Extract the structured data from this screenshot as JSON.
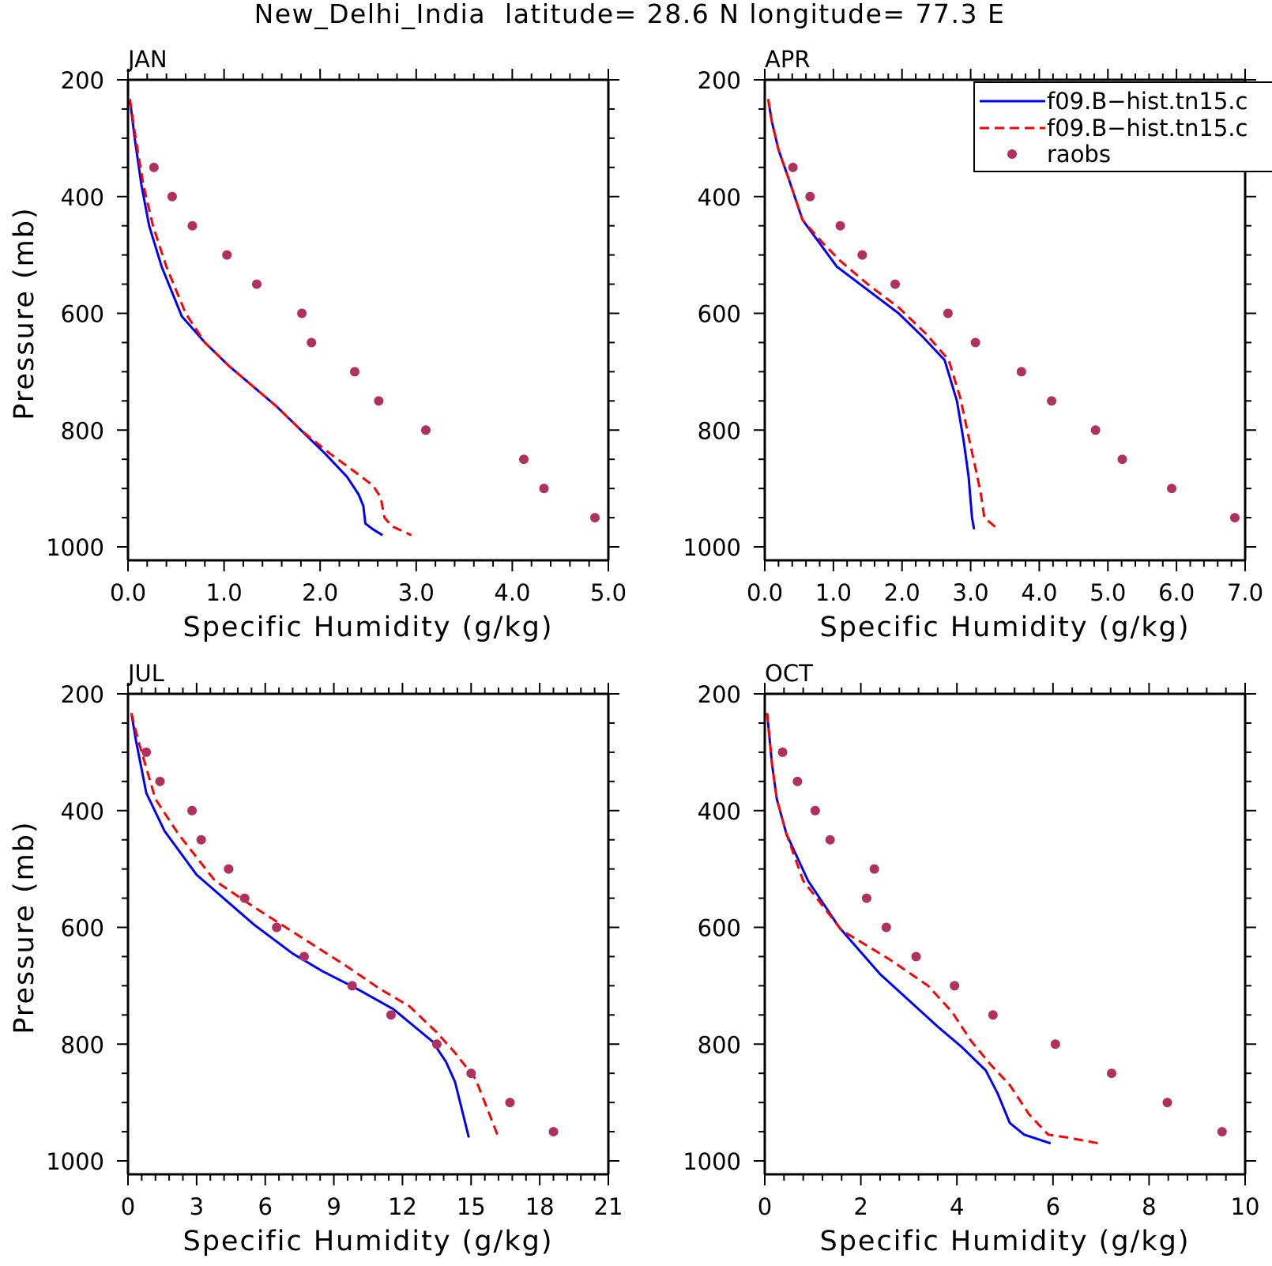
{
  "figure": {
    "title": "New_Delhi_India  latitude= 28.6 N longitude= 77.3 E"
  },
  "legend": {
    "placement": "top-right",
    "entries": [
      {
        "label": "f09.B−hist.tn15.c",
        "style": "solid",
        "color": "#0000ff"
      },
      {
        "label": "f09.B−hist.tn15.c",
        "style": "dashed",
        "color": "#ff0000"
      },
      {
        "label": "raobs",
        "style": "marker",
        "color": "#b03060"
      }
    ]
  },
  "colors": {
    "model_solid": "#0000ff",
    "model_dashed": "#ff0000",
    "raobs": "#b03060"
  },
  "chart_data": [
    {
      "type": "line",
      "panel_label": "JAN",
      "xlabel": "Specific Humidity (g/kg)",
      "ylabel": "Pressure (mb)",
      "xlim": [
        0,
        5
      ],
      "ylim": [
        200,
        1000
      ],
      "y_inverted": true,
      "xticks": [
        "0.0",
        "1.0",
        "2.0",
        "3.0",
        "4.0",
        "5.0"
      ],
      "xtick_values": [
        0,
        1,
        2,
        3,
        4,
        5
      ],
      "yticks": [
        "200",
        "400",
        "600",
        "800",
        "1000"
      ],
      "ytick_values": [
        200,
        400,
        600,
        800,
        1000
      ],
      "series": [
        {
          "style": "solid",
          "color": "#0000ff",
          "x": [
            0.02,
            0.07,
            0.14,
            0.22,
            0.35,
            0.56,
            0.8,
            1.05,
            1.3,
            1.55,
            1.8,
            2.05,
            2.28,
            2.4,
            2.45,
            2.47,
            2.55,
            2.65
          ],
          "y": [
            233,
            300,
            380,
            450,
            520,
            605,
            650,
            690,
            725,
            760,
            800,
            840,
            880,
            910,
            930,
            960,
            970,
            980
          ]
        },
        {
          "style": "dashed",
          "color": "#ff0000",
          "x": [
            0.02,
            0.08,
            0.16,
            0.26,
            0.4,
            0.6,
            0.8,
            1.05,
            1.3,
            1.55,
            1.8,
            2.1,
            2.35,
            2.55,
            2.63,
            2.67,
            2.75,
            2.95
          ],
          "y": [
            233,
            300,
            380,
            450,
            520,
            600,
            650,
            690,
            725,
            760,
            800,
            840,
            870,
            895,
            915,
            950,
            965,
            980
          ]
        },
        {
          "style": "marker",
          "color": "#b03060",
          "x": [
            0.27,
            0.46,
            0.67,
            1.03,
            1.34,
            1.81,
            1.91,
            2.36,
            2.61,
            3.1,
            4.12,
            4.33,
            4.86
          ],
          "y": [
            350,
            400,
            450,
            500,
            550,
            600,
            650,
            700,
            750,
            800,
            850,
            900,
            950
          ]
        }
      ]
    },
    {
      "type": "line",
      "panel_label": "APR",
      "xlabel": "Specific Humidity (g/kg)",
      "ylabel": "",
      "xlim": [
        0,
        7
      ],
      "ylim": [
        200,
        1000
      ],
      "y_inverted": true,
      "xticks": [
        "0.0",
        "1.0",
        "2.0",
        "3.0",
        "4.0",
        "5.0",
        "6.0",
        "7.0"
      ],
      "xtick_values": [
        0,
        1,
        2,
        3,
        4,
        5,
        6,
        7
      ],
      "yticks": [
        "200",
        "400",
        "600",
        "800",
        "1000"
      ],
      "ytick_values": [
        200,
        400,
        600,
        800,
        1000
      ],
      "series": [
        {
          "style": "solid",
          "color": "#0000ff",
          "x": [
            0.05,
            0.1,
            0.2,
            0.35,
            0.55,
            0.8,
            1.05,
            1.5,
            1.95,
            2.3,
            2.62,
            2.8,
            2.9,
            2.97,
            3.02,
            3.05
          ],
          "y": [
            233,
            270,
            320,
            370,
            440,
            480,
            520,
            560,
            600,
            640,
            680,
            750,
            820,
            880,
            950,
            970
          ]
        },
        {
          "style": "dashed",
          "color": "#ff0000",
          "x": [
            0.05,
            0.1,
            0.2,
            0.35,
            0.55,
            0.85,
            1.1,
            1.5,
            1.95,
            2.35,
            2.68,
            2.85,
            2.95,
            3.08,
            3.15,
            3.2,
            3.3,
            3.4
          ],
          "y": [
            233,
            270,
            320,
            370,
            440,
            480,
            510,
            550,
            590,
            635,
            680,
            745,
            800,
            870,
            910,
            950,
            960,
            970
          ]
        },
        {
          "style": "marker",
          "color": "#b03060",
          "x": [
            0.41,
            0.66,
            1.1,
            1.42,
            1.9,
            2.67,
            3.07,
            3.74,
            4.18,
            4.82,
            5.21,
            5.93,
            6.85
          ],
          "y": [
            350,
            400,
            450,
            500,
            550,
            600,
            650,
            700,
            750,
            800,
            850,
            900,
            950
          ]
        }
      ]
    },
    {
      "type": "line",
      "panel_label": "JUL",
      "xlabel": "Specific Humidity (g/kg)",
      "ylabel": "Pressure (mb)",
      "xlim": [
        0,
        21
      ],
      "ylim": [
        200,
        1000
      ],
      "y_inverted": true,
      "xticks": [
        "0",
        "3",
        "6",
        "9",
        "12",
        "15",
        "18",
        "21"
      ],
      "xtick_values": [
        0,
        3,
        6,
        9,
        12,
        15,
        18,
        21
      ],
      "yticks": [
        "200",
        "400",
        "600",
        "800",
        "1000"
      ],
      "ytick_values": [
        200,
        400,
        600,
        800,
        1000
      ],
      "series": [
        {
          "style": "solid",
          "color": "#0000ff",
          "x": [
            0.15,
            0.35,
            0.8,
            1.6,
            3.0,
            5.5,
            7.2,
            8.5,
            10.0,
            11.6,
            13.3,
            13.9,
            14.3,
            14.9
          ],
          "y": [
            233,
            280,
            370,
            435,
            510,
            595,
            645,
            675,
            705,
            740,
            795,
            830,
            865,
            960
          ]
        },
        {
          "style": "dashed",
          "color": "#ff0000",
          "x": [
            0.15,
            0.45,
            1.2,
            2.2,
            3.8,
            5.5,
            7.5,
            9.5,
            11.0,
            12.3,
            13.5,
            14.3,
            15.2,
            16.2
          ],
          "y": [
            233,
            280,
            380,
            440,
            520,
            565,
            615,
            665,
            705,
            735,
            780,
            815,
            860,
            960
          ]
        },
        {
          "style": "marker",
          "color": "#b03060",
          "x": [
            0.8,
            1.4,
            2.8,
            3.2,
            4.4,
            5.1,
            6.5,
            7.7,
            9.8,
            11.5,
            13.5,
            15.0,
            16.7,
            18.6
          ],
          "y": [
            300,
            350,
            400,
            450,
            500,
            550,
            600,
            650,
            700,
            750,
            800,
            850,
            900,
            950
          ]
        }
      ]
    },
    {
      "type": "line",
      "panel_label": "OCT",
      "xlabel": "Specific Humidity (g/kg)",
      "ylabel": "",
      "xlim": [
        0,
        10
      ],
      "ylim": [
        200,
        1000
      ],
      "y_inverted": true,
      "xticks": [
        "0",
        "2",
        "4",
        "6",
        "8",
        "10"
      ],
      "xtick_values": [
        0,
        2,
        4,
        6,
        8,
        10
      ],
      "yticks": [
        "200",
        "400",
        "600",
        "800",
        "1000"
      ],
      "ytick_values": [
        200,
        400,
        600,
        800,
        1000
      ],
      "series": [
        {
          "style": "solid",
          "color": "#0000ff",
          "x": [
            0.05,
            0.15,
            0.25,
            0.45,
            0.9,
            1.55,
            2.4,
            3.0,
            3.6,
            4.1,
            4.6,
            4.85,
            5.1,
            5.4,
            5.95
          ],
          "y": [
            233,
            320,
            380,
            440,
            520,
            600,
            680,
            725,
            770,
            805,
            845,
            885,
            935,
            955,
            970
          ]
        },
        {
          "style": "dashed",
          "color": "#ff0000",
          "x": [
            0.05,
            0.15,
            0.25,
            0.45,
            0.8,
            1.6,
            2.6,
            3.4,
            3.9,
            4.3,
            4.7,
            5.1,
            5.5,
            5.9,
            6.3,
            6.95
          ],
          "y": [
            233,
            320,
            380,
            440,
            520,
            605,
            655,
            700,
            745,
            795,
            835,
            870,
            920,
            955,
            960,
            970
          ]
        },
        {
          "style": "marker",
          "color": "#b03060",
          "x": [
            0.37,
            0.68,
            1.05,
            1.36,
            2.28,
            2.12,
            2.53,
            3.15,
            3.95,
            4.75,
            6.05,
            7.22,
            8.38,
            9.52
          ],
          "y": [
            300,
            350,
            400,
            450,
            500,
            550,
            600,
            650,
            700,
            750,
            800,
            850,
            900,
            950
          ]
        }
      ]
    }
  ]
}
